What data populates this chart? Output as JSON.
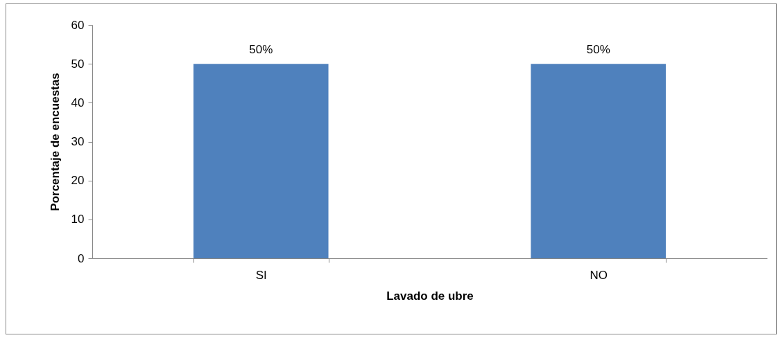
{
  "chart_data": {
    "type": "bar",
    "xlabel": "Lavado de ubre",
    "ylabel": "Porcentaje de encuestas",
    "categories": [
      "SI",
      "NO"
    ],
    "values": [
      50,
      50
    ],
    "value_labels": [
      "50%",
      "50%"
    ],
    "color": "#4f81bd",
    "ylim": [
      0,
      60
    ],
    "yticks": [
      0,
      10,
      20,
      30,
      40,
      50,
      60
    ],
    "grid": false
  }
}
